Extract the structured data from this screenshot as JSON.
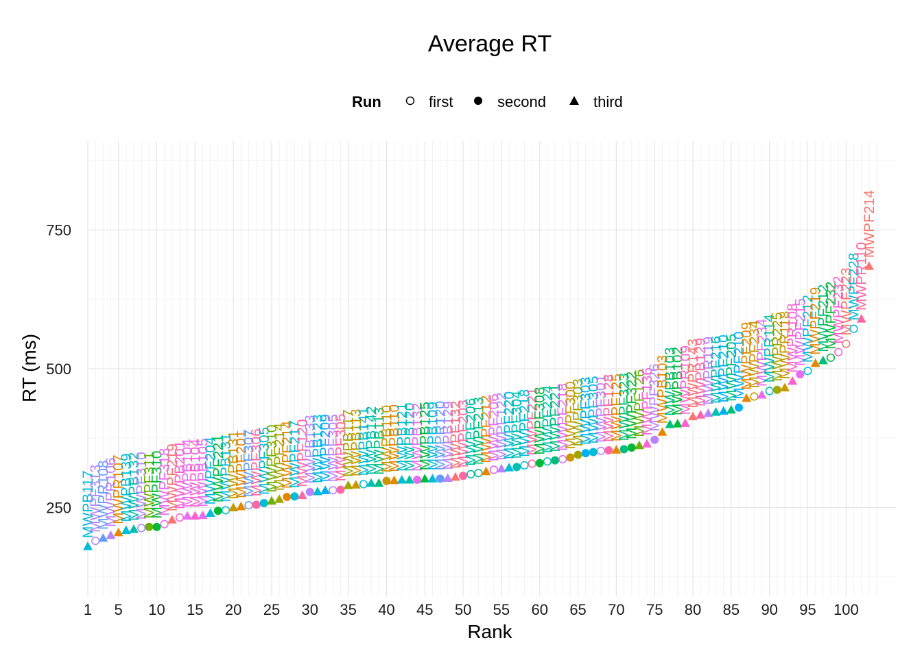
{
  "chart_data": {
    "type": "scatter",
    "title": "Average RT",
    "xlabel": "Rank",
    "ylabel": "RT (ms)",
    "xlim": [
      1,
      104
    ],
    "ylim": [
      90,
      910
    ],
    "x_ticks": [
      1,
      5,
      10,
      15,
      20,
      25,
      30,
      35,
      40,
      45,
      50,
      55,
      60,
      65,
      70,
      75,
      80,
      85,
      90,
      95,
      100
    ],
    "y_ticks": [
      250,
      500,
      750
    ],
    "grid": true,
    "legend": {
      "title": "Run",
      "placement": "top",
      "entries": [
        {
          "name": "first",
          "shape": "open-circle"
        },
        {
          "name": "second",
          "shape": "filled-circle"
        },
        {
          "name": "third",
          "shape": "triangle"
        }
      ]
    },
    "palette": [
      "#F8766D",
      "#E58700",
      "#C99800",
      "#A3A500",
      "#6BB100",
      "#00BA38",
      "#00BF7D",
      "#00C0AF",
      "#00BCD8",
      "#00B0F6",
      "#619CFF",
      "#B983FF",
      "#E76BF3",
      "#FD61D1",
      "#FF67A4"
    ],
    "points": [
      {
        "rank": 1,
        "rt": 180,
        "run": "third",
        "label": "MWPB117",
        "color": 8
      },
      {
        "rank": 2,
        "rt": 190,
        "run": "first",
        "label": "MWPF313",
        "color": 11
      },
      {
        "rank": 3,
        "rt": 195,
        "run": "third",
        "label": "MWPR108",
        "color": 10
      },
      {
        "rank": 4,
        "rt": 200,
        "run": "third",
        "label": "MWPR106",
        "color": 11
      },
      {
        "rank": 5,
        "rt": 205,
        "run": "third",
        "label": "MWPR107",
        "color": 1
      },
      {
        "rank": 6,
        "rt": 209,
        "run": "third",
        "label": "MWPB139",
        "color": 8
      },
      {
        "rank": 7,
        "rt": 211,
        "run": "third",
        "label": "MWPB132",
        "color": 7
      },
      {
        "rank": 8,
        "rt": 213,
        "run": "first",
        "label": "MWPF310",
        "color": 11
      },
      {
        "rank": 9,
        "rt": 215,
        "run": "second",
        "label": "MWPF311",
        "color": 4
      },
      {
        "rank": 10,
        "rt": 215,
        "run": "second",
        "label": "MWPF310",
        "color": 5
      },
      {
        "rank": 11,
        "rt": 220,
        "run": "first",
        "label": "MWPF318",
        "color": 12
      },
      {
        "rank": 12,
        "rt": 228,
        "run": "third",
        "label": "MWPF219",
        "color": 0
      },
      {
        "rank": 13,
        "rt": 232,
        "run": "first",
        "label": "MWPB201",
        "color": 13
      },
      {
        "rank": 14,
        "rt": 235,
        "run": "third",
        "label": "MWPB104",
        "color": 12
      },
      {
        "rank": 15,
        "rt": 235,
        "run": "third",
        "label": "MWPB104",
        "color": 13
      },
      {
        "rank": 16,
        "rt": 236,
        "run": "third",
        "label": "MWPB105",
        "color": 12
      },
      {
        "rank": 17,
        "rt": 240,
        "run": "third",
        "label": "MWPF204",
        "color": 8
      },
      {
        "rank": 18,
        "rt": 244,
        "run": "second",
        "label": "MWPF221",
        "color": 5
      },
      {
        "rank": 19,
        "rt": 245,
        "run": "first",
        "label": "MWPB131",
        "color": 8
      },
      {
        "rank": 20,
        "rt": 250,
        "run": "third",
        "label": "MWPB131",
        "color": 2
      },
      {
        "rank": 21,
        "rt": 252,
        "run": "third",
        "label": "MWPF201",
        "color": 1
      },
      {
        "rank": 22,
        "rt": 254,
        "run": "first",
        "label": "MWPF307",
        "color": 10
      },
      {
        "rank": 23,
        "rt": 255,
        "run": "second",
        "label": "MWPF306",
        "color": 14
      },
      {
        "rank": 24,
        "rt": 258,
        "run": "second",
        "label": "MWPF305",
        "color": 8
      },
      {
        "rank": 25,
        "rt": 262,
        "run": "third",
        "label": "MWPF310",
        "color": 4
      },
      {
        "rank": 26,
        "rt": 265,
        "run": "third",
        "label": "MWPF214",
        "color": 3
      },
      {
        "rank": 27,
        "rt": 269,
        "run": "second",
        "label": "MWPF214",
        "color": 1
      },
      {
        "rank": 28,
        "rt": 270,
        "run": "second",
        "label": "MWPF217",
        "color": 8
      },
      {
        "rank": 29,
        "rt": 272,
        "run": "third",
        "label": "MWPF120",
        "color": 14
      },
      {
        "rank": 30,
        "rt": 278,
        "run": "second",
        "label": "MWPB133",
        "color": 11
      },
      {
        "rank": 31,
        "rt": 279,
        "run": "third",
        "label": "MWPB123",
        "color": 8
      },
      {
        "rank": 32,
        "rt": 281,
        "run": "third",
        "label": "MWPF209",
        "color": 9
      },
      {
        "rank": 33,
        "rt": 281,
        "run": "first",
        "label": "MWPF305",
        "color": 11
      },
      {
        "rank": 34,
        "rt": 282,
        "run": "second",
        "label": "MWPF305",
        "color": 14
      },
      {
        "rank": 35,
        "rt": 290,
        "run": "third",
        "label": "MWPB117",
        "color": 3
      },
      {
        "rank": 36,
        "rt": 291,
        "run": "third",
        "label": "MWPB113",
        "color": 2
      },
      {
        "rank": 37,
        "rt": 292,
        "run": "first",
        "label": "MWPB141",
        "color": 8
      },
      {
        "rank": 38,
        "rt": 294,
        "run": "third",
        "label": "MWPB142",
        "color": 7
      },
      {
        "rank": 39,
        "rt": 294,
        "run": "third",
        "label": "MWPB113",
        "color": 6
      },
      {
        "rank": 40,
        "rt": 298,
        "run": "second",
        "label": "MWPB110",
        "color": 2
      },
      {
        "rank": 41,
        "rt": 299,
        "run": "third",
        "label": "MWPB110",
        "color": 1
      },
      {
        "rank": 42,
        "rt": 300,
        "run": "third",
        "label": "MWPB121",
        "color": 8
      },
      {
        "rank": 43,
        "rt": 300,
        "run": "third",
        "label": "MWPB120",
        "color": 7
      },
      {
        "rank": 44,
        "rt": 300,
        "run": "second",
        "label": "MWPB132",
        "color": 12
      },
      {
        "rank": 45,
        "rt": 302,
        "run": "third",
        "label": "MWPB125",
        "color": 5
      },
      {
        "rank": 46,
        "rt": 302,
        "run": "third",
        "label": "MWPB109",
        "color": 8
      },
      {
        "rank": 47,
        "rt": 302,
        "run": "second",
        "label": "MWPR120",
        "color": 10
      },
      {
        "rank": 48,
        "rt": 303,
        "run": "third",
        "label": "MWPB129",
        "color": 11
      },
      {
        "rank": 49,
        "rt": 305,
        "run": "third",
        "label": "MWPF132",
        "color": 0
      },
      {
        "rank": 50,
        "rt": 307,
        "run": "second",
        "label": "MWPF203",
        "color": 14
      },
      {
        "rank": 51,
        "rt": 310,
        "run": "first",
        "label": "MWPF206",
        "color": 7
      },
      {
        "rank": 52,
        "rt": 312,
        "run": "first",
        "label": "MWPF213",
        "color": 6
      },
      {
        "rank": 53,
        "rt": 315,
        "run": "third",
        "label": "MWPF212",
        "color": 1
      },
      {
        "rank": 54,
        "rt": 318,
        "run": "first",
        "label": "MWPF206",
        "color": 12
      },
      {
        "rank": 55,
        "rt": 320,
        "run": "third",
        "label": "MWPF122",
        "color": 11
      },
      {
        "rank": 56,
        "rt": 322,
        "run": "third",
        "label": "MWPF220",
        "color": 8
      },
      {
        "rank": 57,
        "rt": 323,
        "run": "second",
        "label": "MWPF304",
        "color": 7
      },
      {
        "rank": 58,
        "rt": 326,
        "run": "first",
        "label": "MWPF218",
        "color": 8
      },
      {
        "rank": 59,
        "rt": 329,
        "run": "first",
        "label": "MWPF221",
        "color": 14
      },
      {
        "rank": 60,
        "rt": 330,
        "run": "second",
        "label": "MWPF308",
        "color": 5
      },
      {
        "rank": 61,
        "rt": 333,
        "run": "first",
        "label": "MWPF224",
        "color": 7
      },
      {
        "rank": 62,
        "rt": 335,
        "run": "second",
        "label": "MWPF221",
        "color": 6
      },
      {
        "rank": 63,
        "rt": 337,
        "run": "first",
        "label": "MWPF218",
        "color": 12
      },
      {
        "rank": 64,
        "rt": 340,
        "run": "second",
        "label": "MWPF300",
        "color": 2
      },
      {
        "rank": 65,
        "rt": 345,
        "run": "second",
        "label": "MWPF303",
        "color": 3
      },
      {
        "rank": 66,
        "rt": 348,
        "run": "second",
        "label": "MWPF303",
        "color": 9
      },
      {
        "rank": 67,
        "rt": 350,
        "run": "second",
        "label": "MWPF305",
        "color": 8
      },
      {
        "rank": 68,
        "rt": 352,
        "run": "first",
        "label": "MWPF301",
        "color": 11
      },
      {
        "rank": 69,
        "rt": 353,
        "run": "second",
        "label": "MWPF128",
        "color": 14
      },
      {
        "rank": 70,
        "rt": 354,
        "run": "third",
        "label": "MWPF125",
        "color": 1
      },
      {
        "rank": 71,
        "rt": 355,
        "run": "second",
        "label": "MWPF323",
        "color": 6
      },
      {
        "rank": 72,
        "rt": 358,
        "run": "second",
        "label": "MWPF322",
        "color": 5
      },
      {
        "rank": 73,
        "rt": 362,
        "run": "third",
        "label": "MWPF126",
        "color": 4
      },
      {
        "rank": 74,
        "rt": 365,
        "run": "third",
        "label": "MWPF136",
        "color": 13
      },
      {
        "rank": 75,
        "rt": 372,
        "run": "second",
        "label": "MWPF326",
        "color": 11
      },
      {
        "rank": 76,
        "rt": 386,
        "run": "third",
        "label": "MWPB103",
        "color": 1
      },
      {
        "rank": 77,
        "rt": 400,
        "run": "third",
        "label": "MWPB103",
        "color": 6
      },
      {
        "rank": 78,
        "rt": 401,
        "run": "third",
        "label": "MWPB102",
        "color": 5
      },
      {
        "rank": 79,
        "rt": 402,
        "run": "third",
        "label": "MWPR109",
        "color": 13
      },
      {
        "rank": 80,
        "rt": 414,
        "run": "third",
        "label": "MWPR143",
        "color": 0
      },
      {
        "rank": 81,
        "rt": 417,
        "run": "third",
        "label": "MWPB129",
        "color": 14
      },
      {
        "rank": 82,
        "rt": 420,
        "run": "third",
        "label": "MWPR119",
        "color": 11
      },
      {
        "rank": 83,
        "rt": 422,
        "run": "third",
        "label": "MWPF216",
        "color": 7
      },
      {
        "rank": 84,
        "rt": 424,
        "run": "third",
        "label": "MWPF210",
        "color": 9
      },
      {
        "rank": 85,
        "rt": 426,
        "run": "third",
        "label": "MWPF205",
        "color": 6
      },
      {
        "rank": 86,
        "rt": 430,
        "run": "second",
        "label": "MWPF210",
        "color": 9
      },
      {
        "rank": 87,
        "rt": 447,
        "run": "third",
        "label": "MWPF209",
        "color": 1
      },
      {
        "rank": 88,
        "rt": 450,
        "run": "first",
        "label": "MWPF234",
        "color": 2
      },
      {
        "rank": 89,
        "rt": 453,
        "run": "third",
        "label": "MWPF234",
        "color": 12
      },
      {
        "rank": 90,
        "rt": 460,
        "run": "first",
        "label": "MWPR114",
        "color": 7
      },
      {
        "rank": 91,
        "rt": 462,
        "run": "second",
        "label": "MWPR225",
        "color": 3
      },
      {
        "rank": 92,
        "rt": 466,
        "run": "third",
        "label": "MWPR118",
        "color": 2
      },
      {
        "rank": 93,
        "rt": 478,
        "run": "third",
        "label": "MWPR108",
        "color": 13
      },
      {
        "rank": 94,
        "rt": 490,
        "run": "second",
        "label": "MWPF215",
        "color": 12
      },
      {
        "rank": 95,
        "rt": 496,
        "run": "first",
        "label": "MWPF212",
        "color": 8
      },
      {
        "rank": 96,
        "rt": 510,
        "run": "third",
        "label": "MWPF219",
        "color": 1
      },
      {
        "rank": 97,
        "rt": 515,
        "run": "third",
        "label": "MWPF212",
        "color": 6
      },
      {
        "rank": 98,
        "rt": 520,
        "run": "first",
        "label": "MWPF232",
        "color": 5
      },
      {
        "rank": 99,
        "rt": 530,
        "run": "first",
        "label": "MWPF232",
        "color": 13
      },
      {
        "rank": 100,
        "rt": 545,
        "run": "first",
        "label": "MWPF223",
        "color": 0
      },
      {
        "rank": 101,
        "rt": 572,
        "run": "first",
        "label": "MWPF228",
        "color": 8
      },
      {
        "rank": 102,
        "rt": 590,
        "run": "third",
        "label": "MWPR110",
        "color": 14
      },
      {
        "rank": 103,
        "rt": 685,
        "run": "third",
        "label": "MWPF214",
        "color": 0
      }
    ]
  }
}
